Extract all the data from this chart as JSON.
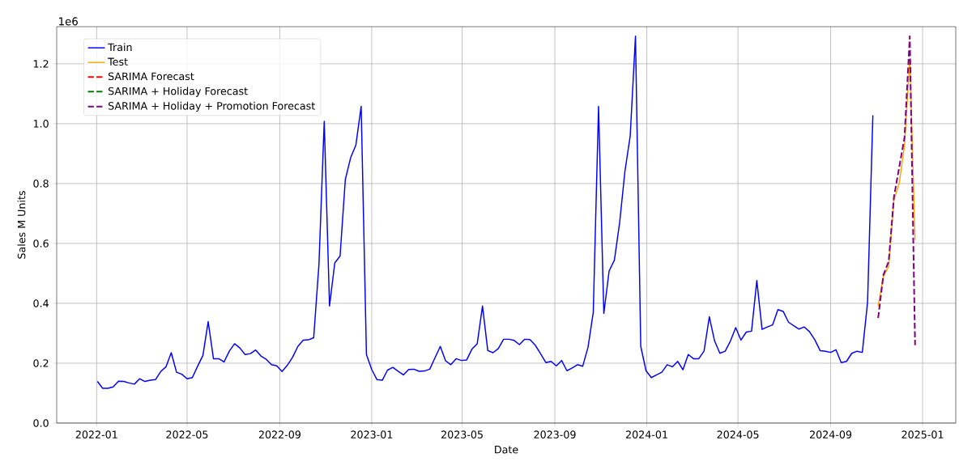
{
  "chart_data": {
    "type": "line",
    "xlabel": "Date",
    "ylabel": "Sales M Units",
    "annotations": [
      "1e6"
    ],
    "xlim": [
      "2021-11-09",
      "2025-02-14"
    ],
    "ylim": [
      0,
      1.324
    ],
    "xticks": [
      {
        "value": "2022-01-01",
        "label": "2022-01"
      },
      {
        "value": "2022-05-01",
        "label": "2022-05"
      },
      {
        "value": "2022-09-01",
        "label": "2022-09"
      },
      {
        "value": "2023-01-01",
        "label": "2023-01"
      },
      {
        "value": "2023-05-01",
        "label": "2023-05"
      },
      {
        "value": "2023-09-01",
        "label": "2023-09"
      },
      {
        "value": "2024-01-01",
        "label": "2024-01"
      },
      {
        "value": "2024-05-01",
        "label": "2024-05"
      },
      {
        "value": "2024-09-01",
        "label": "2024-09"
      },
      {
        "value": "2025-01-01",
        "label": "2025-01"
      }
    ],
    "yticks": [
      {
        "value": 0,
        "label": "0.0"
      },
      0.2,
      0.4,
      0.6,
      0.8,
      {
        "value": 1,
        "label": "1.0"
      },
      1.2
    ],
    "grid": true,
    "legend": "top left",
    "series": [
      {
        "name": "Train",
        "color": "#0000ff",
        "line_style": "solid",
        "x": [
          "2022-01-02",
          "2022-01-09",
          "2022-01-16",
          "2022-01-23",
          "2022-01-30",
          "2022-02-06",
          "2022-02-13",
          "2022-02-20",
          "2022-02-27",
          "2022-03-06",
          "2022-03-13",
          "2022-03-20",
          "2022-03-27",
          "2022-04-03",
          "2022-04-10",
          "2022-04-17",
          "2022-04-24",
          "2022-05-01",
          "2022-05-08",
          "2022-05-15",
          "2022-05-22",
          "2022-05-29",
          "2022-06-05",
          "2022-06-12",
          "2022-06-19",
          "2022-06-26",
          "2022-07-03",
          "2022-07-10",
          "2022-07-17",
          "2022-07-24",
          "2022-07-31",
          "2022-08-07",
          "2022-08-14",
          "2022-08-21",
          "2022-08-28",
          "2022-09-04",
          "2022-09-11",
          "2022-09-18",
          "2022-09-25",
          "2022-10-02",
          "2022-10-09",
          "2022-10-16",
          "2022-10-23",
          "2022-10-30",
          "2022-11-06",
          "2022-11-13",
          "2022-11-20",
          "2022-11-27",
          "2022-12-04",
          "2022-12-11",
          "2022-12-18",
          "2022-12-25",
          "2023-01-01",
          "2023-01-08",
          "2023-01-15",
          "2023-01-22",
          "2023-01-29",
          "2023-02-05",
          "2023-02-12",
          "2023-02-19",
          "2023-02-26",
          "2023-03-05",
          "2023-03-12",
          "2023-03-19",
          "2023-03-26",
          "2023-04-02",
          "2023-04-09",
          "2023-04-16",
          "2023-04-23",
          "2023-04-30",
          "2023-05-07",
          "2023-05-14",
          "2023-05-21",
          "2023-05-28",
          "2023-06-04",
          "2023-06-11",
          "2023-06-18",
          "2023-06-25",
          "2023-07-02",
          "2023-07-09",
          "2023-07-16",
          "2023-07-23",
          "2023-07-30",
          "2023-08-06",
          "2023-08-13",
          "2023-08-20",
          "2023-08-27",
          "2023-09-03",
          "2023-09-10",
          "2023-09-17",
          "2023-09-24",
          "2023-10-01",
          "2023-10-08",
          "2023-10-15",
          "2023-10-22",
          "2023-10-29",
          "2023-11-05",
          "2023-11-12",
          "2023-11-19",
          "2023-11-26",
          "2023-12-03",
          "2023-12-10",
          "2023-12-17",
          "2023-12-24",
          "2023-12-31",
          "2024-01-07",
          "2024-01-14",
          "2024-01-21",
          "2024-01-28",
          "2024-02-04",
          "2024-02-11",
          "2024-02-18",
          "2024-02-25",
          "2024-03-03",
          "2024-03-10",
          "2024-03-17",
          "2024-03-24",
          "2024-03-31",
          "2024-04-07",
          "2024-04-14",
          "2024-04-21",
          "2024-04-28",
          "2024-05-05",
          "2024-05-12",
          "2024-05-19",
          "2024-05-26",
          "2024-06-02",
          "2024-06-09",
          "2024-06-16",
          "2024-06-23",
          "2024-06-30",
          "2024-07-07",
          "2024-07-14",
          "2024-07-21",
          "2024-07-28",
          "2024-08-04",
          "2024-08-11",
          "2024-08-18",
          "2024-08-25",
          "2024-09-01",
          "2024-09-08",
          "2024-09-15",
          "2024-09-22",
          "2024-09-29",
          "2024-10-06",
          "2024-10-13",
          "2024-10-20",
          "2024-10-27"
        ],
        "values": [
          0.139,
          0.116,
          0.116,
          0.121,
          0.14,
          0.139,
          0.134,
          0.13,
          0.148,
          0.139,
          0.143,
          0.145,
          0.172,
          0.188,
          0.235,
          0.17,
          0.163,
          0.148,
          0.152,
          0.19,
          0.226,
          0.339,
          0.215,
          0.215,
          0.204,
          0.24,
          0.265,
          0.251,
          0.229,
          0.232,
          0.244,
          0.224,
          0.213,
          0.195,
          0.191,
          0.172,
          0.193,
          0.22,
          0.256,
          0.277,
          0.278,
          0.285,
          0.531,
          1.008,
          0.391,
          0.535,
          0.558,
          0.814,
          0.886,
          0.929,
          1.058,
          0.229,
          0.179,
          0.145,
          0.143,
          0.177,
          0.186,
          0.173,
          0.161,
          0.179,
          0.18,
          0.173,
          0.174,
          0.18,
          0.218,
          0.256,
          0.208,
          0.195,
          0.215,
          0.209,
          0.211,
          0.247,
          0.265,
          0.391,
          0.242,
          0.235,
          0.249,
          0.28,
          0.28,
          0.276,
          0.262,
          0.28,
          0.279,
          0.26,
          0.232,
          0.202,
          0.206,
          0.191,
          0.209,
          0.175,
          0.184,
          0.195,
          0.19,
          0.253,
          0.37,
          1.058,
          0.366,
          0.508,
          0.544,
          0.67,
          0.841,
          0.959,
          1.292,
          0.256,
          0.175,
          0.152,
          0.161,
          0.17,
          0.195,
          0.188,
          0.206,
          0.178,
          0.229,
          0.215,
          0.215,
          0.241,
          0.355,
          0.274,
          0.233,
          0.24,
          0.274,
          0.319,
          0.277,
          0.304,
          0.307,
          0.476,
          0.313,
          0.321,
          0.328,
          0.379,
          0.373,
          0.337,
          0.325,
          0.314,
          0.321,
          0.305,
          0.278,
          0.242,
          0.24,
          0.236,
          0.245,
          0.202,
          0.206,
          0.233,
          0.24,
          0.236,
          0.405,
          1.028
        ]
      },
      {
        "name": "Test",
        "color": "#ffa500",
        "line_style": "solid",
        "x": [
          "2024-11-03",
          "2024-11-10",
          "2024-11-17",
          "2024-11-24",
          "2024-12-01",
          "2024-12-08",
          "2024-12-15",
          "2024-12-22"
        ],
        "values": [
          0.391,
          0.49,
          0.523,
          0.747,
          0.801,
          0.927,
          1.215,
          0.612
        ]
      },
      {
        "name": "SARIMA Forecast",
        "color": "#ff0000",
        "line_style": "dashed",
        "values": [
          null,
          null,
          null,
          null,
          null,
          null,
          null,
          null
        ]
      },
      {
        "name": "SARIMA + Holiday Forecast",
        "color": "#008000",
        "line_style": "dashed",
        "values": [
          null,
          null,
          null,
          null,
          null,
          null,
          null,
          null
        ]
      },
      {
        "name": "SARIMA + Holiday + Promotion Forecast",
        "color": "#800080",
        "line_style": "dashed",
        "x": [
          "2024-11-03",
          "2024-11-10",
          "2024-11-17",
          "2024-11-24",
          "2024-12-01",
          "2024-12-08",
          "2024-12-15",
          "2024-12-22"
        ],
        "values": [
          0.351,
          0.495,
          0.54,
          0.756,
          0.855,
          0.954,
          1.292,
          0.26
        ]
      }
    ]
  }
}
